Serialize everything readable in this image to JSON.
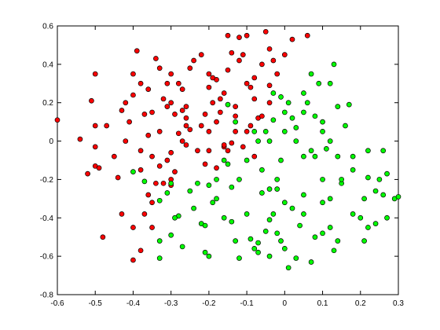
{
  "chart_data": {
    "type": "scatter",
    "xlim": [
      -0.6,
      0.3
    ],
    "xticks": [
      -0.6,
      -0.5,
      -0.4,
      -0.3,
      -0.2,
      -0.1,
      0,
      0.1,
      0.2,
      0.3
    ],
    "ylim": [
      -0.8,
      0.6
    ],
    "yticks": [
      -0.8,
      -0.6,
      -0.4,
      -0.2,
      0,
      0.2,
      0.4,
      0.6
    ],
    "grid": false,
    "series": [
      {
        "color": "#ff0000",
        "x": [
          -0.6,
          -0.5,
          -0.51,
          -0.5,
          -0.54,
          -0.5,
          -0.5,
          -0.49,
          -0.52,
          -0.47,
          -0.48,
          -0.43,
          -0.42,
          -0.4,
          -0.39,
          -0.38,
          -0.4,
          -0.41,
          -0.37,
          -0.36,
          -0.38,
          -0.35,
          -0.33,
          -0.38,
          -0.42,
          -0.36,
          -0.34,
          -0.33,
          -0.31,
          -0.3,
          -0.32,
          -0.31,
          -0.3,
          -0.28,
          -0.27,
          -0.29,
          -0.27,
          -0.26,
          -0.28,
          -0.25,
          -0.26,
          -0.3,
          -0.31,
          -0.29,
          -0.3,
          -0.34,
          -0.36,
          -0.35,
          -0.37,
          -0.43,
          -0.4,
          -0.35,
          -0.4,
          -0.38,
          -0.32,
          -0.3,
          -0.25,
          -0.24,
          -0.22,
          -0.2,
          -0.2,
          -0.18,
          -0.19,
          -0.21,
          -0.22,
          -0.2,
          -0.23,
          -0.21,
          -0.18,
          -0.17,
          -0.16,
          -0.15,
          -0.14,
          -0.15,
          -0.12,
          -0.1,
          -0.11,
          -0.12,
          -0.13,
          -0.13,
          -0.14,
          -0.16,
          -0.15,
          -0.13,
          -0.1,
          -0.08,
          -0.08,
          -0.07,
          -0.09,
          -0.06,
          -0.04,
          -0.03,
          -0.05,
          -0.04,
          -0.02,
          0.0,
          0.02,
          0.06,
          -0.1,
          -0.11,
          -0.08,
          -0.06,
          -0.04,
          -0.09,
          -0.35,
          -0.26,
          -0.33,
          -0.2,
          -0.18,
          -0.16,
          -0.44,
          -0.45,
          -0.27,
          -0.19,
          -0.17,
          -0.26
        ],
        "values": [
          0.11,
          0.35,
          0.21,
          0.08,
          0.01,
          -0.03,
          -0.13,
          -0.14,
          -0.17,
          0.08,
          -0.5,
          0.16,
          0.2,
          0.35,
          0.47,
          0.3,
          0.24,
          0.1,
          0.14,
          0.03,
          -0.05,
          -0.08,
          -0.13,
          -0.15,
          0.0,
          0.27,
          0.43,
          0.38,
          0.3,
          0.35,
          0.22,
          0.18,
          0.2,
          0.3,
          0.27,
          0.14,
          0.16,
          0.12,
          0.04,
          0.06,
          -0.02,
          -0.06,
          -0.1,
          -0.16,
          -0.2,
          -0.22,
          -0.28,
          -0.32,
          -0.38,
          -0.38,
          -0.45,
          -0.45,
          -0.62,
          -0.57,
          -0.22,
          -0.23,
          0.38,
          0.42,
          0.45,
          0.35,
          0.28,
          0.32,
          0.2,
          0.14,
          0.08,
          0.05,
          -0.05,
          -0.12,
          0.1,
          0.15,
          0.25,
          0.37,
          0.46,
          0.55,
          0.54,
          0.55,
          0.45,
          0.42,
          0.13,
          0.05,
          -0.01,
          -0.03,
          -0.05,
          0.18,
          0.3,
          0.33,
          0.22,
          0.12,
          0.08,
          0.4,
          0.48,
          0.42,
          0.57,
          0.2,
          0.35,
          0.45,
          0.53,
          0.55,
          0.05,
          -0.03,
          -0.08,
          0.13,
          0.29,
          0.28,
          0.15,
          0.08,
          0.05,
          -0.05,
          -0.14,
          -0.02,
          -0.19,
          -0.08,
          0.0,
          0.33,
          0.22,
          0.18
        ]
      },
      {
        "color": "#00ff00",
        "x": [
          -0.4,
          -0.37,
          -0.33,
          -0.3,
          -0.31,
          -0.33,
          -0.33,
          -0.3,
          -0.28,
          -0.27,
          -0.29,
          -0.25,
          -0.24,
          -0.23,
          -0.22,
          -0.21,
          -0.2,
          -0.19,
          -0.18,
          -0.2,
          -0.21,
          -0.16,
          -0.15,
          -0.14,
          -0.14,
          -0.13,
          -0.12,
          -0.1,
          -0.09,
          -0.08,
          -0.07,
          -0.07,
          -0.06,
          -0.05,
          -0.04,
          -0.04,
          -0.03,
          -0.02,
          -0.01,
          0.0,
          0.01,
          0.03,
          0.04,
          0.05,
          0.07,
          0.08,
          0.1,
          0.12,
          0.13,
          0.14,
          0.1,
          0.12,
          0.15,
          0.18,
          0.2,
          0.21,
          0.22,
          0.24,
          0.21,
          0.22,
          0.24,
          0.25,
          0.26,
          0.27,
          0.27,
          0.29,
          0.3,
          0.26,
          0.22,
          0.18,
          0.18,
          0.15,
          0.14,
          0.12,
          0.11,
          0.1,
          0.1,
          0.08,
          0.06,
          0.07,
          0.05,
          0.03,
          0.03,
          0.02,
          0.01,
          0.0,
          0.0,
          -0.01,
          -0.02,
          -0.04,
          -0.06,
          -0.07,
          -0.08,
          -0.1,
          -0.12,
          -0.15,
          -0.13,
          -0.05,
          -0.04,
          -0.03,
          -0.01,
          -0.03,
          0.05,
          0.07,
          0.09,
          0.12,
          0.13,
          0.16,
          0.17,
          0.14,
          0.05,
          0.08,
          -0.18,
          -0.16,
          0.0,
          -0.02,
          0.05,
          0.1,
          0.02
        ],
        "values": [
          -0.16,
          -0.21,
          -0.31,
          -0.22,
          -0.27,
          -0.52,
          -0.61,
          -0.49,
          -0.39,
          -0.55,
          -0.4,
          -0.26,
          -0.35,
          -0.22,
          -0.43,
          -0.44,
          -0.23,
          -0.32,
          -0.3,
          -0.6,
          -0.58,
          -0.1,
          -0.12,
          -0.24,
          -0.42,
          -0.52,
          -0.61,
          -0.38,
          -0.51,
          -0.56,
          -0.53,
          -0.58,
          -0.27,
          -0.47,
          -0.41,
          -0.6,
          -0.38,
          -0.48,
          -0.52,
          -0.32,
          -0.66,
          -0.61,
          -0.44,
          -0.38,
          -0.63,
          -0.5,
          -0.48,
          -0.45,
          -0.57,
          -0.52,
          -0.32,
          -0.3,
          -0.22,
          -0.38,
          -0.4,
          -0.52,
          -0.45,
          -0.43,
          -0.3,
          -0.19,
          -0.26,
          -0.2,
          -0.28,
          -0.17,
          -0.4,
          -0.3,
          -0.29,
          -0.05,
          -0.05,
          -0.15,
          -0.08,
          -0.2,
          -0.08,
          0.0,
          -0.04,
          0.05,
          0.1,
          0.13,
          0.2,
          -0.05,
          -0.08,
          0.0,
          0.07,
          0.12,
          0.2,
          0.15,
          0.05,
          -0.1,
          -0.2,
          -0.25,
          -0.15,
          0.0,
          0.05,
          -0.1,
          -0.2,
          0.19,
          0.1,
          0.05,
          0.0,
          0.11,
          0.23,
          0.25,
          0.25,
          0.35,
          0.3,
          0.3,
          0.4,
          0.08,
          0.19,
          0.18,
          0.15,
          -0.08,
          -0.2,
          -0.4,
          -0.56,
          -0.25,
          -0.28,
          -0.2,
          -0.35
        ]
      }
    ]
  }
}
